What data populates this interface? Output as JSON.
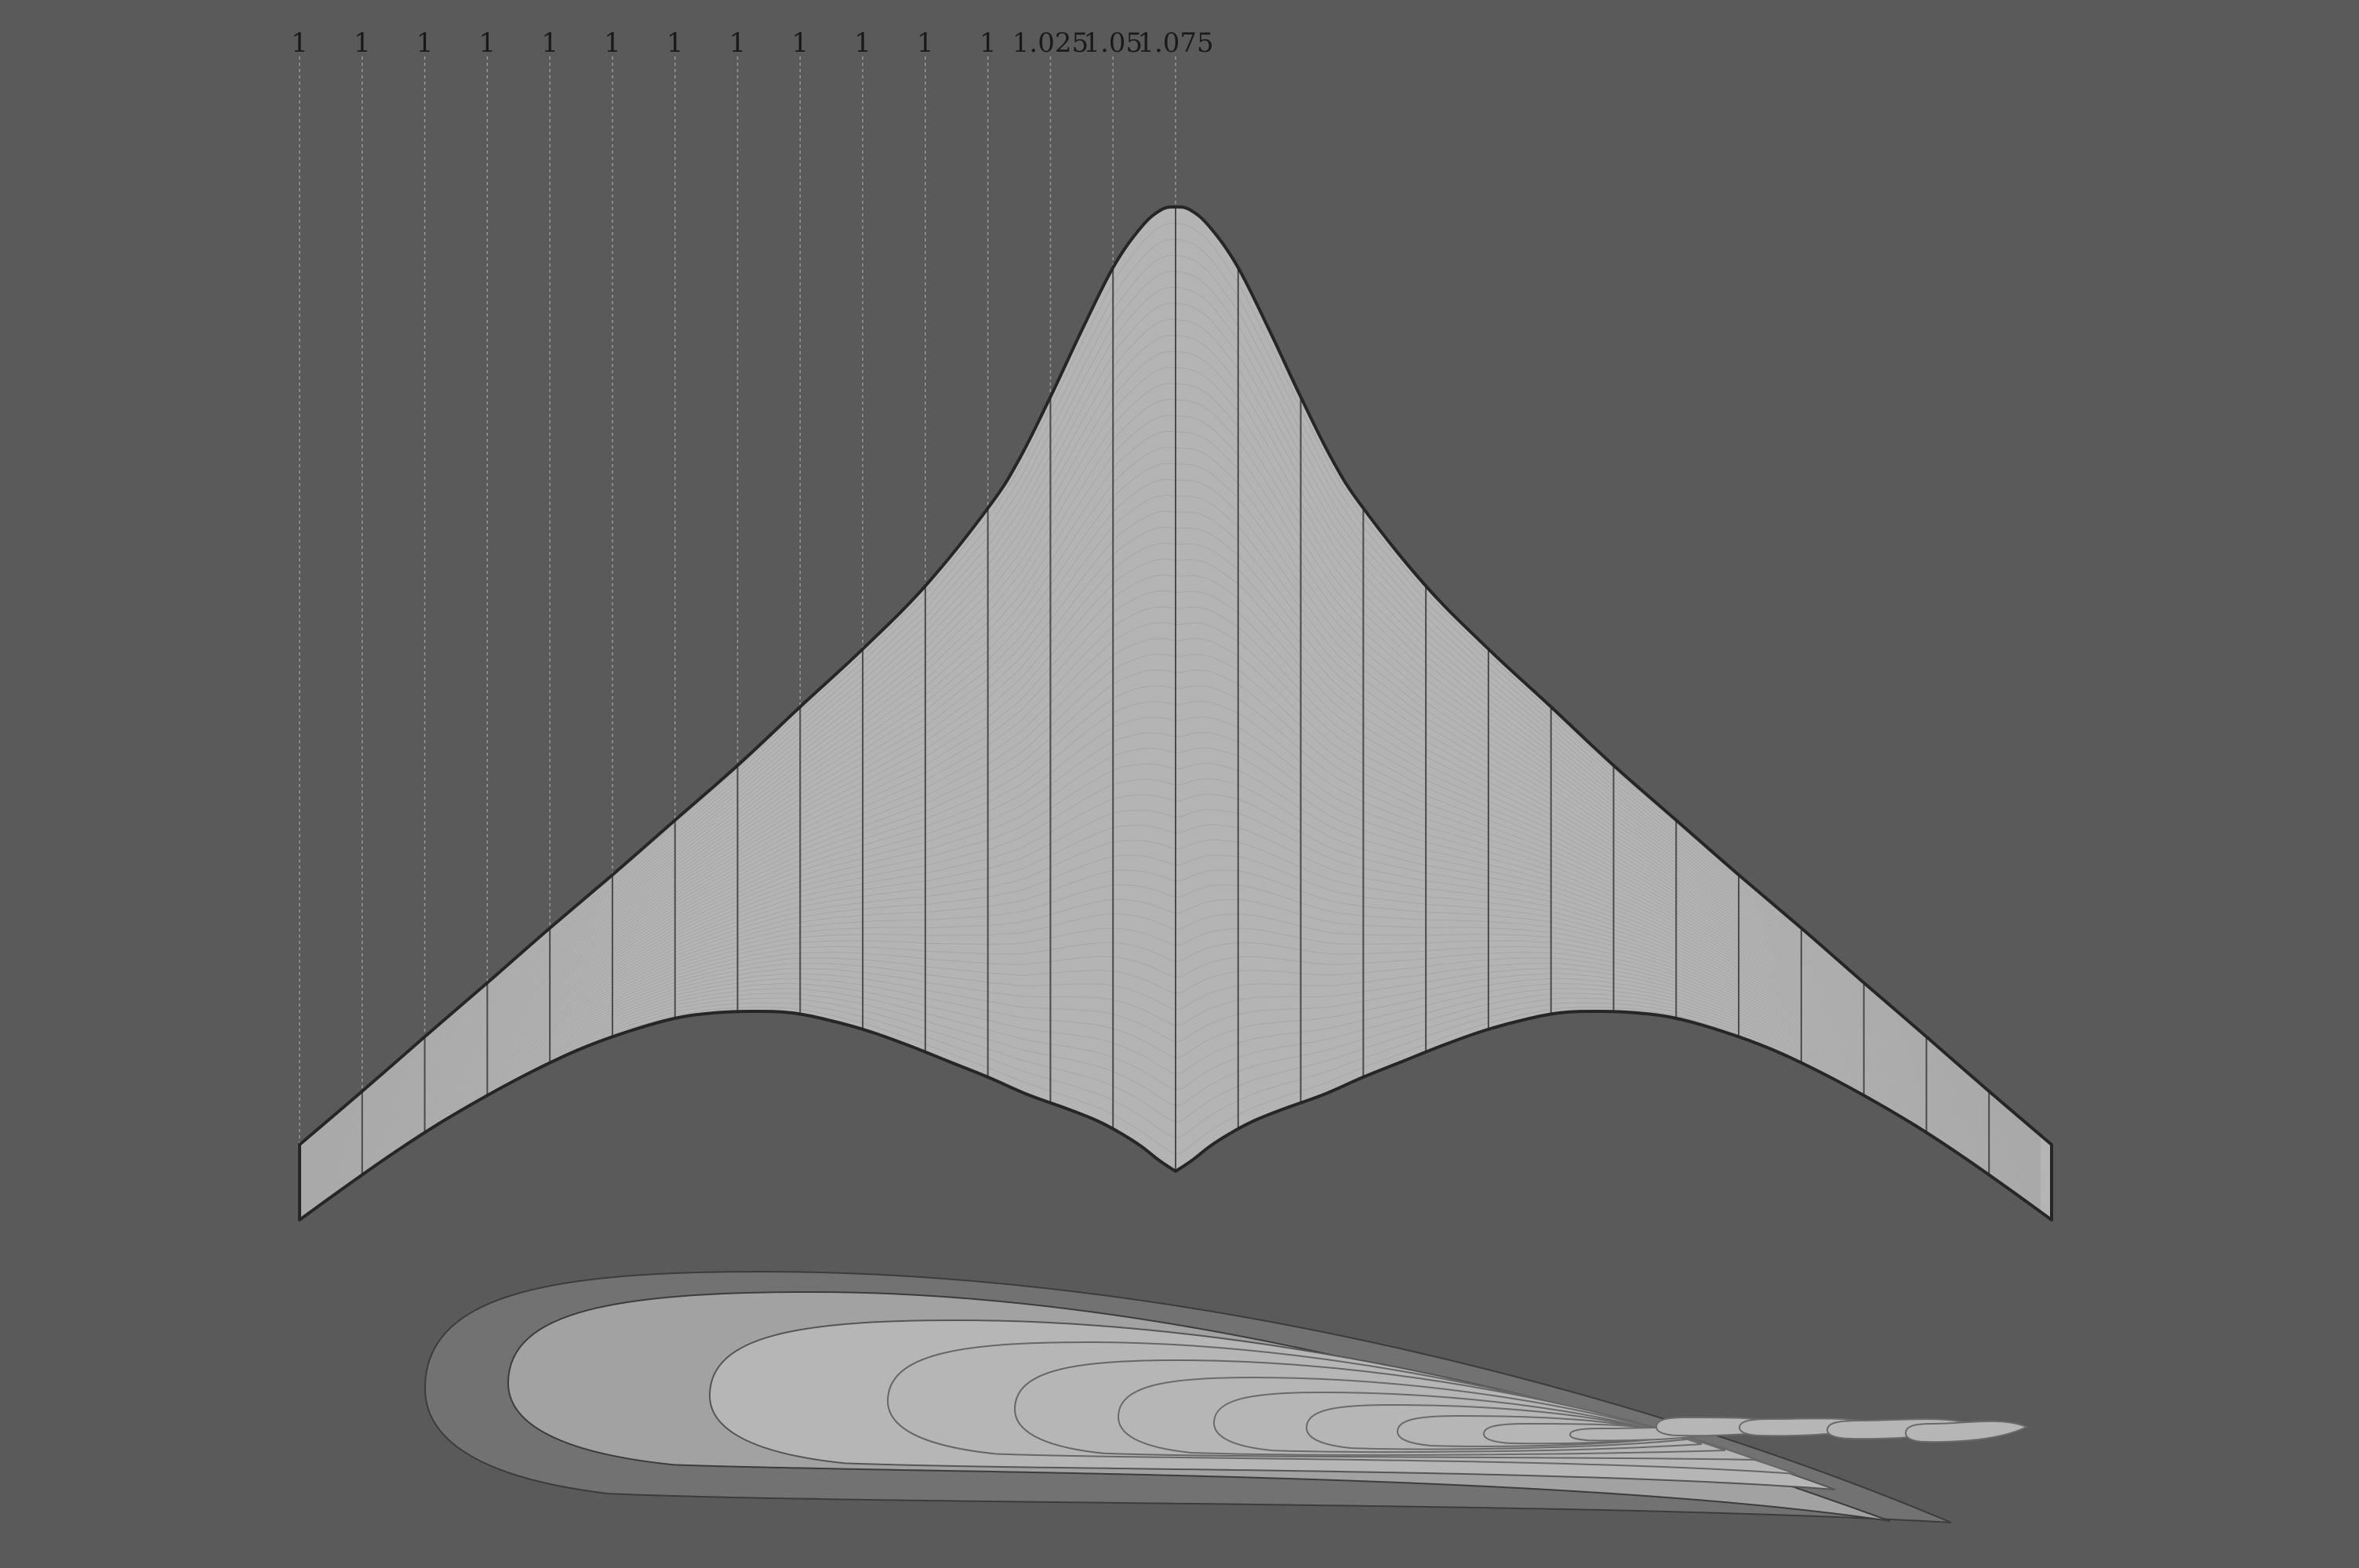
{
  "station_scales": [
    "1",
    "1",
    "1",
    "1",
    "1",
    "1",
    "1",
    "1",
    "1",
    "1",
    "1",
    "1",
    "1.025",
    "1.05",
    "1.075"
  ],
  "colors": {
    "background": "#5a5a5a",
    "wing_fill": "#b4b4b4",
    "outline": "#262626",
    "guide": "#9a9a9a",
    "section_fill_light": "#b6b6b6",
    "section_fill_mid": "#a2a2a2",
    "section_fill_dark": "#7d7d7d",
    "section_fill_outer": "#727272"
  },
  "icons": [
    "wing-planform",
    "airfoil-section-stack"
  ]
}
